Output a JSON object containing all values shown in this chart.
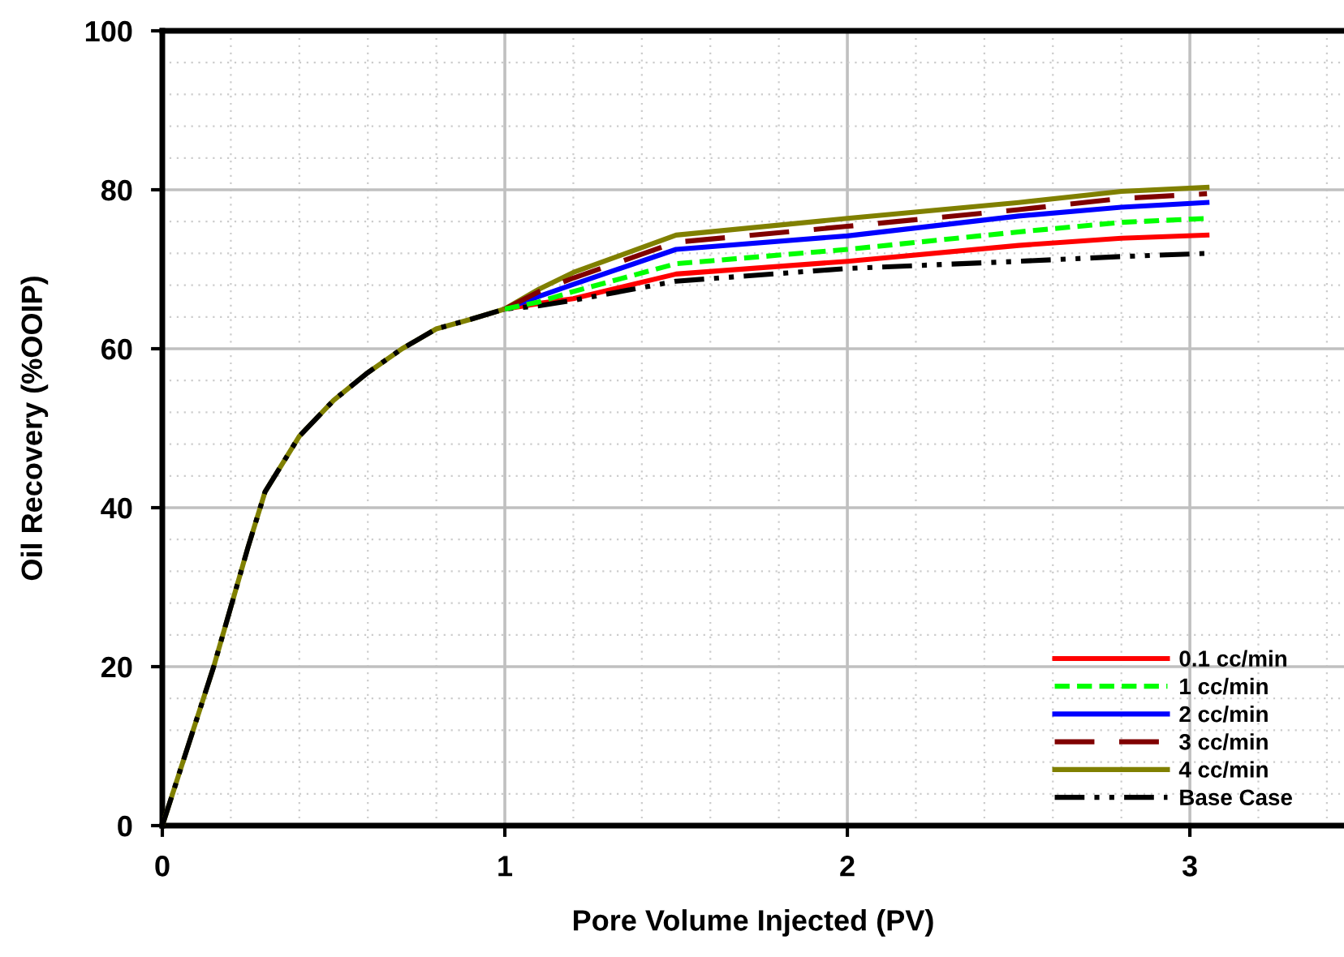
{
  "chart_data": {
    "type": "line",
    "xlabel": "Pore Volume Injected (PV)",
    "ylabel": "Oil Recovery (%OOIP)",
    "xlim": [
      0,
      3.45
    ],
    "ylim": [
      0,
      100
    ],
    "xticks": [
      0,
      1,
      2,
      3
    ],
    "yticks": [
      0,
      20,
      40,
      60,
      80,
      100
    ],
    "grid": true,
    "legend": "bottom right",
    "marker": "none",
    "x": [
      0,
      0.15,
      0.25,
      0.3,
      0.4,
      0.5,
      0.6,
      0.7,
      0.8,
      0.9,
      1.0,
      1.1,
      1.2,
      1.5,
      2.0,
      2.5,
      2.8,
      3.05
    ],
    "series": [
      {
        "name": "0.1 cc/min",
        "color": "#ff0000",
        "line_style": "solid",
        "values": [
          null,
          null,
          null,
          null,
          null,
          null,
          null,
          null,
          null,
          null,
          65,
          65.7,
          66.3,
          69.4,
          71.0,
          73.0,
          73.9,
          74.3
        ]
      },
      {
        "name": "1 cc/min",
        "color": "#00ff00",
        "line_style": "dashed",
        "values": [
          null,
          null,
          null,
          null,
          null,
          null,
          null,
          null,
          null,
          null,
          65,
          65.9,
          67.2,
          70.7,
          72.5,
          74.7,
          75.9,
          76.4
        ]
      },
      {
        "name": "2 cc/min",
        "color": "#0000ff",
        "line_style": "solid",
        "values": [
          null,
          null,
          null,
          null,
          null,
          null,
          null,
          null,
          null,
          null,
          65,
          66.6,
          68.1,
          72.5,
          74.2,
          76.7,
          77.8,
          78.4
        ]
      },
      {
        "name": "3 cc/min",
        "color": "#800000",
        "line_style": "longdash",
        "values": [
          null,
          null,
          null,
          null,
          null,
          null,
          null,
          null,
          null,
          null,
          65,
          67.2,
          68.9,
          73.4,
          75.4,
          77.5,
          78.9,
          79.5
        ]
      },
      {
        "name": "4 cc/min",
        "color": "#808000",
        "line_style": "solid",
        "values": [
          0,
          20,
          35,
          42,
          49,
          53.5,
          57,
          60,
          62.5,
          63.7,
          65,
          67.5,
          69.6,
          74.3,
          76.4,
          78.4,
          79.8,
          80.3
        ]
      },
      {
        "name": "Base Case",
        "color": "#000000",
        "line_style": "dashdotdot",
        "values": [
          0,
          20,
          35,
          42,
          49,
          53.5,
          57,
          60,
          62.5,
          63.7,
          65,
          65.4,
          66.1,
          68.5,
          70.1,
          71.0,
          71.6,
          72.0
        ]
      }
    ]
  }
}
